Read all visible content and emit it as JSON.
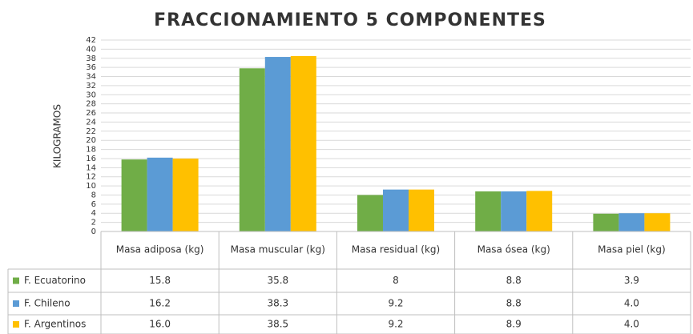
{
  "chart_data": {
    "type": "bar",
    "title": "FRACCIONAMIENTO 5 COMPONENTES",
    "ylabel": "KILOGRAMOS",
    "categories": [
      "Masa adiposa (kg)",
      "Masa muscular (kg)",
      "Masa residual (kg)",
      "Masa ósea (kg)",
      "Masa piel (kg)"
    ],
    "series": [
      {
        "name": "F. Ecuatorino",
        "color": "#70ad47",
        "values": [
          15.8,
          35.8,
          8,
          8.8,
          3.9
        ],
        "value_labels": [
          "15.8",
          "35.8",
          "8",
          "8.8",
          "3.9"
        ]
      },
      {
        "name": "F. Chileno",
        "color": "#5b9bd5",
        "values": [
          16.2,
          38.3,
          9.2,
          8.8,
          4.0
        ],
        "value_labels": [
          "16.2",
          "38.3",
          "9.2",
          "8.8",
          "4.0"
        ]
      },
      {
        "name": "F. Argentinos",
        "color": "#ffc000",
        "values": [
          16.0,
          38.5,
          9.2,
          8.9,
          4.0
        ],
        "value_labels": [
          "16.0",
          "38.5",
          "9.2",
          "8.9",
          "4.0"
        ]
      }
    ],
    "ylim": [
      0,
      42
    ],
    "yticks": [
      0,
      2,
      4,
      6,
      8,
      10,
      12,
      14,
      16,
      18,
      20,
      22,
      24,
      26,
      28,
      30,
      32,
      34,
      36,
      38,
      40,
      42
    ],
    "grid": true
  }
}
